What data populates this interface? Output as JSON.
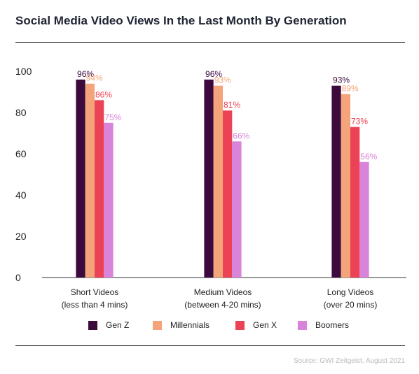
{
  "title": "Social Media Video Views In the Last Month By Generation",
  "source": "Source: GWI Zeitgeist, August 2021",
  "colors": {
    "gen_z": "#3d0a3e",
    "millennials": "#f4a47a",
    "gen_x": "#ec4256",
    "boomers": "#d983da",
    "axis": "#333333"
  },
  "chart_data": {
    "type": "bar",
    "title": "Social Media Video Views In the Last Month By Generation",
    "xlabel": "",
    "ylabel": "",
    "ylim": [
      0,
      100
    ],
    "yticks": [
      0,
      20,
      40,
      60,
      80,
      100
    ],
    "grid": false,
    "legend_position": "bottom",
    "categories": [
      [
        "Short Videos",
        "(less than 4 mins)"
      ],
      [
        "Medium Videos",
        "(between 4-20 mins)"
      ],
      [
        "Long Videos",
        "(over 20 mins)"
      ]
    ],
    "series": [
      {
        "name": "Gen Z",
        "color": "#3d0a3e",
        "label_color": "#3d0a3e",
        "values": [
          96,
          96,
          93
        ],
        "labels": [
          "96%",
          "96%",
          "93%"
        ]
      },
      {
        "name": "Millennials",
        "color": "#f4a47a",
        "label_color": "#f4a47a",
        "values": [
          94,
          93,
          89
        ],
        "labels": [
          "94%",
          "93%",
          "89%"
        ]
      },
      {
        "name": "Gen X",
        "color": "#ec4256",
        "label_color": "#ec4256",
        "values": [
          86,
          81,
          73
        ],
        "labels": [
          "86%",
          "81%",
          "73%"
        ]
      },
      {
        "name": "Boomers",
        "color": "#d983da",
        "label_color": "#d983da",
        "values": [
          75,
          66,
          56
        ],
        "labels": [
          "75%",
          "66%",
          "56%"
        ]
      }
    ]
  }
}
